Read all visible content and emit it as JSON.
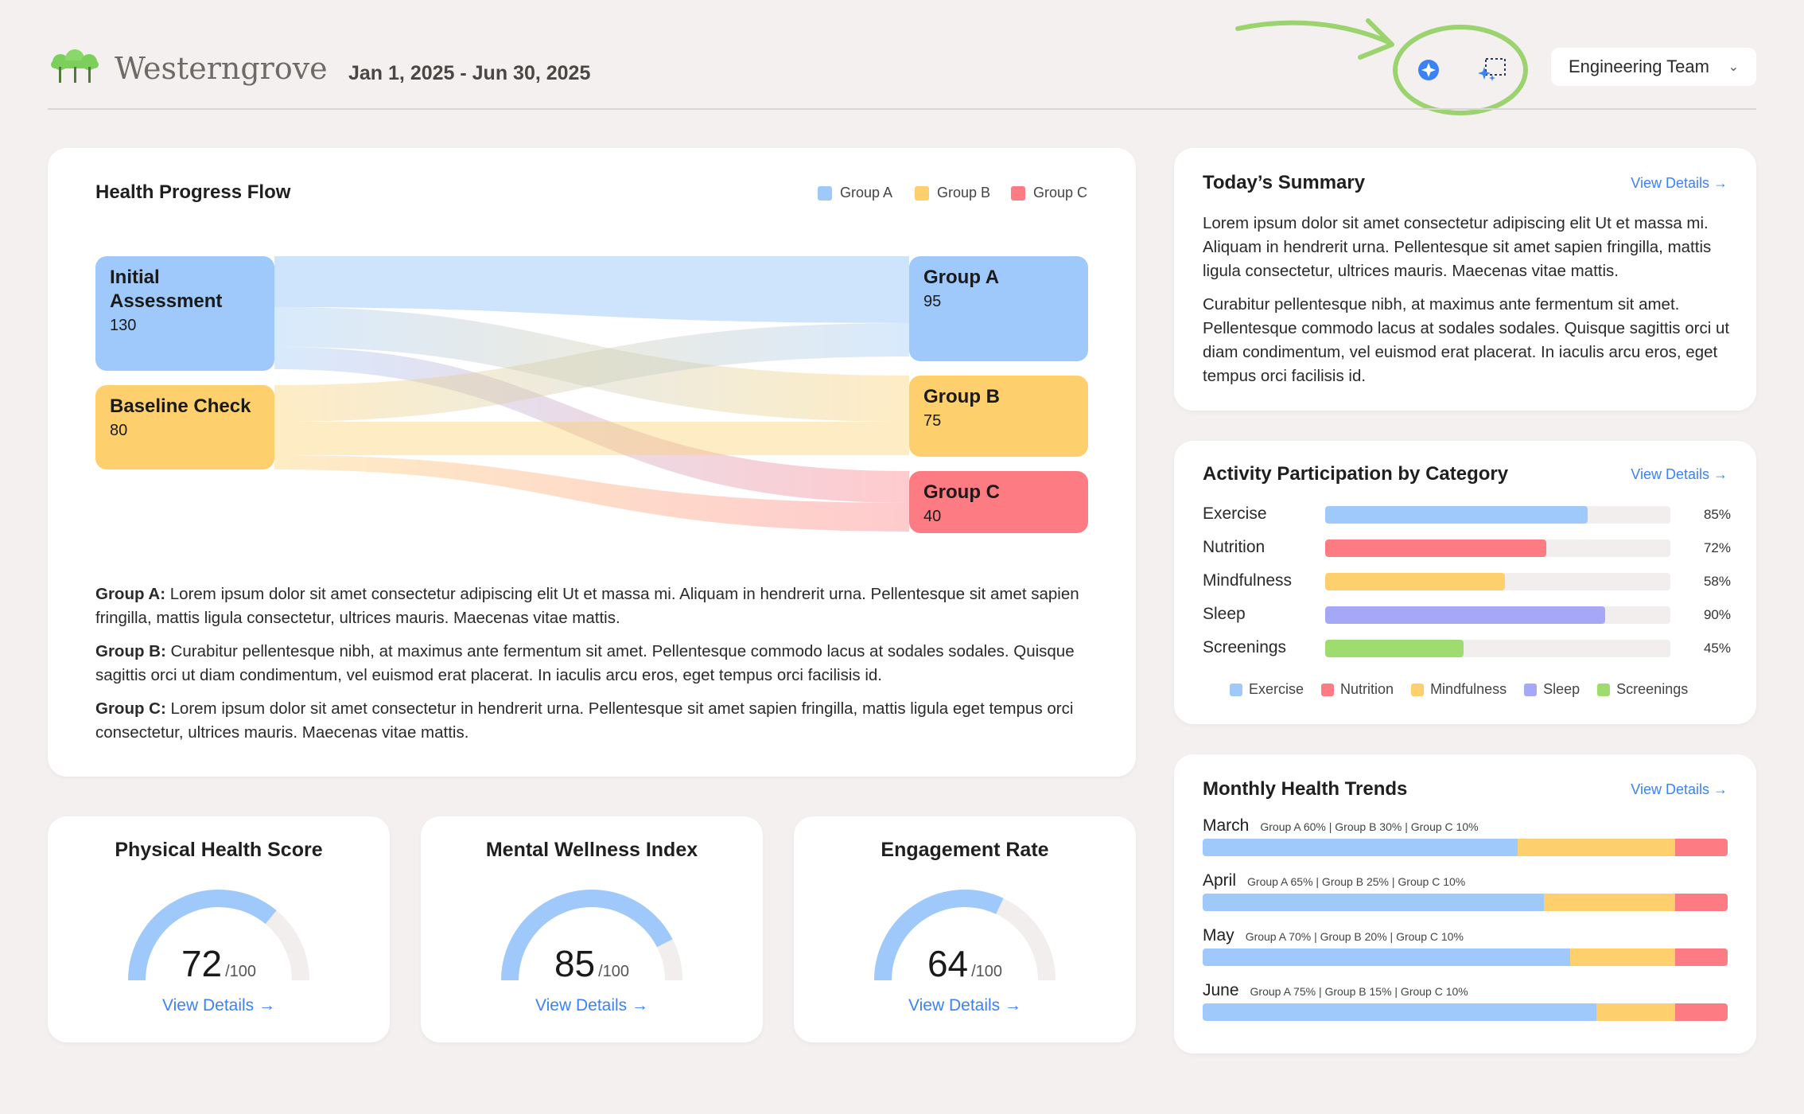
{
  "header": {
    "brand": "Westerngrove",
    "date_range": "Jan 1, 2025 - Jun 30, 2025",
    "team_select": "Engineering Team"
  },
  "colors": {
    "group_a": "#9ec9fa",
    "group_b": "#fdd06d",
    "group_c": "#fd7c83",
    "sleep": "#a5a7f7",
    "screenings": "#9fdc6f",
    "accent": "#3b82f6"
  },
  "sankey": {
    "title": "Health Progress Flow",
    "legend": [
      "Group A",
      "Group B",
      "Group C"
    ],
    "sources": [
      {
        "label": "Initial Assessment",
        "value": "130"
      },
      {
        "label": "Baseline Check",
        "value": "80"
      }
    ],
    "targets": [
      {
        "label": "Group A",
        "value": "95"
      },
      {
        "label": "Group B",
        "value": "75"
      },
      {
        "label": "Group C",
        "value": "40"
      }
    ],
    "descriptions": [
      {
        "label": "Group A:",
        "text": "Lorem ipsum dolor sit amet consectetur adipiscing elit Ut et massa mi. Aliquam in hendrerit urna. Pellentesque sit amet sapien fringilla, mattis ligula consectetur, ultrices mauris. Maecenas vitae mattis."
      },
      {
        "label": "Group B:",
        "text": "Curabitur pellentesque nibh, at maximus ante fermentum sit amet. Pellentesque commodo lacus at sodales sodales. Quisque sagittis orci ut diam condimentum, vel euismod erat placerat. In iaculis arcu eros, eget tempus orci facilisis id."
      },
      {
        "label": "Group C:",
        "text": "Lorem ipsum dolor sit amet consectetur in hendrerit urna. Pellentesque sit amet sapien fringilla, mattis ligula eget tempus orci consectetur, ultrices mauris. Maecenas vitae mattis."
      }
    ]
  },
  "gauges": [
    {
      "title": "Physical Health Score",
      "value": "72",
      "max": "/100",
      "fraction": 0.72,
      "link": "View Details →"
    },
    {
      "title": "Mental Wellness Index",
      "value": "85",
      "max": "/100",
      "fraction": 0.85,
      "link": "View Details →"
    },
    {
      "title": "Engagement Rate",
      "value": "64",
      "max": "/100",
      "fraction": 0.64,
      "link": "View Details →"
    }
  ],
  "summary": {
    "title": "Today’s Summary",
    "link": "View Details →",
    "p1": "Lorem ipsum dolor sit amet consectetur adipiscing elit Ut et massa mi. Aliquam in hendrerit urna. Pellentesque sit amet sapien fringilla, mattis ligula consectetur, ultrices mauris. Maecenas vitae mattis.",
    "p2": "Curabitur pellentesque nibh, at maximus ante fermentum sit amet. Pellentesque commodo lacus at sodales sodales. Quisque sagittis orci ut diam condimentum, vel euismod erat placerat. In iaculis arcu eros, eget tempus orci facilisis id."
  },
  "activity": {
    "title": "Activity Participation by Category",
    "link": "View Details →",
    "items": [
      {
        "label": "Exercise",
        "pct": "85%",
        "value": 0.76,
        "color": "#9ec9fa"
      },
      {
        "label": "Nutrition",
        "pct": "72%",
        "value": 0.64,
        "color": "#fd7c83"
      },
      {
        "label": "Mindfulness",
        "pct": "58%",
        "value": 0.52,
        "color": "#fdd06d"
      },
      {
        "label": "Sleep",
        "pct": "90%",
        "value": 0.81,
        "color": "#a5a7f7"
      },
      {
        "label": "Screenings",
        "pct": "45%",
        "value": 0.4,
        "color": "#9fdc6f"
      }
    ]
  },
  "trends": {
    "title": "Monthly Health Trends",
    "link": "View Details →",
    "months": [
      {
        "month": "March",
        "note": "Group A 60% | Group B 30% | Group C 10%",
        "a": 60,
        "b": 30,
        "c": 10
      },
      {
        "month": "April",
        "note": "Group A 65% | Group B 25% | Group C 10%",
        "a": 65,
        "b": 25,
        "c": 10
      },
      {
        "month": "May",
        "note": "Group A 70% | Group B 20% | Group C 10%",
        "a": 70,
        "b": 20,
        "c": 10
      },
      {
        "month": "June",
        "note": "Group A 75% | Group B 15% | Group C 10%",
        "a": 75,
        "b": 15,
        "c": 10
      }
    ]
  }
}
